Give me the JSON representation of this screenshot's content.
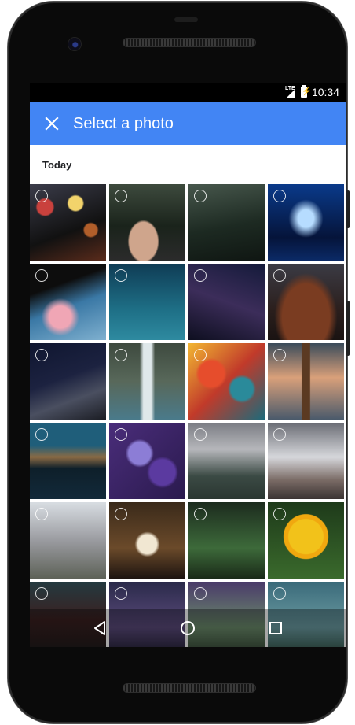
{
  "status": {
    "network": "LTE",
    "time": "10:34"
  },
  "appbar": {
    "title": "Select a photo",
    "close_icon": "close-icon"
  },
  "section": {
    "title": "Today"
  },
  "photos": [
    {
      "bg": "radial-gradient(circle at 20% 30%,#c9413d 0 10px,transparent 12px),radial-gradient(circle at 60% 25%,#f2d36b 0 9px,transparent 11px),radial-gradient(circle at 80% 60%,#b15e2a 0 8px,transparent 10px),linear-gradient(160deg,#3b3c4a,#111 60%,#5a2b1b)"
    },
    {
      "bg": "radial-gradient(ellipse at 45% 75%,#cfa58c 0 18px,transparent 20px),linear-gradient(180deg,#3d4a3d,#1a231b 55%,#2b2b2b)"
    },
    {
      "bg": "linear-gradient(170deg,#47574c,#1d2a22 55%,#0f1612)"
    },
    {
      "bg": "radial-gradient(ellipse at 50% 45%,#b6dcff 0 10px,transparent 22px),linear-gradient(180deg,#0a3a8a,#05143a 70%,#0b2a66)"
    },
    {
      "bg": "radial-gradient(circle at 40% 70%,#f0a6b5 0 14px,transparent 24px),linear-gradient(160deg,#0d0d0d 0 30%,#3a78a5 55%,#7fb0cf)"
    },
    {
      "bg": "linear-gradient(180deg,#0f3c55,#1e6f86 60%,#2e8aa0)"
    },
    {
      "bg": "linear-gradient(200deg,#141a3a,#3c2d5a 50%,#0e0f20)"
    },
    {
      "bg": "radial-gradient(ellipse at 50% 70%,#7a3c21 0 30px,transparent 40px),linear-gradient(180deg,#3b3b44,#2b1f1d 60%,#1a1312)"
    },
    {
      "bg": "linear-gradient(160deg,#0f1630,#1c2240 45%,#4a4f60 70%,#1b1d24)"
    },
    {
      "bg": "linear-gradient(90deg,transparent 40%,#dfe8ea 45% 55%,transparent 60%),linear-gradient(180deg,#3e4a3f,#58685a 50%,#4a7a8a)"
    },
    {
      "bg": "radial-gradient(circle at 30% 40%,#e64d2c 0 16px,transparent 20px),radial-gradient(circle at 70% 60%,#2a8a9a 0 14px,transparent 18px),linear-gradient(135deg,#f2b632,#c13a2a 50%,#1d6a7a)"
    },
    {
      "bg": "linear-gradient(90deg,transparent 44%,#5b3a22 45% 55%,transparent 56%),linear-gradient(180deg,#3a4b5a,#d9a07a 45%,#4a5a6b)"
    },
    {
      "bg": "linear-gradient(180deg,#1f5e7a 0 30%,#8a6a44 45%,#0e1f2a 60%,#122a3a)"
    },
    {
      "bg": "radial-gradient(circle at 40% 40%,#8c7dd6 0 14px,transparent 18px),radial-gradient(circle at 70% 65%,#5b3aa0 0 16px,transparent 20px),linear-gradient(135deg,#4a2d7a,#2a1a4e)"
    },
    {
      "bg": "linear-gradient(180deg,#7b7d84,#b6b7bb 35%,#3b4a44 70%,#2a3631)"
    },
    {
      "bg": "linear-gradient(180deg,#6b6d75,#d6d7db 45%,#7a6b66 75%,#3a3332)"
    },
    {
      "bg": "linear-gradient(180deg,#d8dde2,#9a9ba0 50%,#5d6157)"
    },
    {
      "bg": "radial-gradient(circle at 50% 55%,#f1e7d2 0 12px,transparent 16px),linear-gradient(180deg,#3a2a1a,#6b4a2a 60%,#1d1410)"
    },
    {
      "bg": "linear-gradient(180deg,#1c2b1e,#3d6a3a 60%,#1a2a18)"
    },
    {
      "bg": "radial-gradient(circle at 50% 45%,#f2c21a 0 22px,#f0a80f 23px 28px,transparent 29px),linear-gradient(180deg,#1e3a1a,#3a6a2c)"
    },
    {
      "bg": "linear-gradient(180deg,#243a40,#3a2020 50%,#1a1a1a)"
    },
    {
      "bg": "linear-gradient(180deg,#2a2a4a,#5a4a7a 60%,#1a1a2a)"
    },
    {
      "bg": "linear-gradient(180deg,#4a3a6a,#6a8a6a 60%,#2a3a2a)"
    },
    {
      "bg": "linear-gradient(180deg,#3a6a7a,#6a9aa0 60%,#2a4a3a)"
    }
  ]
}
